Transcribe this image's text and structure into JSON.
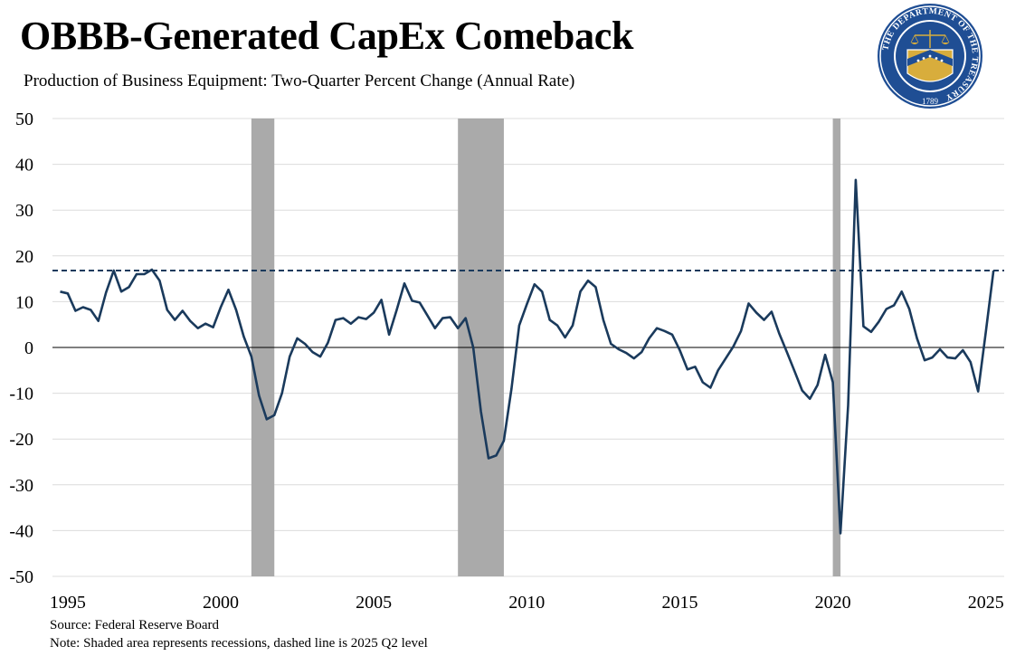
{
  "header": {
    "title": "OBBB-Generated CapEx Comeback",
    "subtitle": "Production of Business Equipment: Two-Quarter Percent Change (Annual Rate)"
  },
  "footer": {
    "source": "Source: Federal Reserve Board",
    "note": "Note: Shaded area represents recessions, dashed line is 2025 Q2 level"
  },
  "seal": {
    "text": "THE DEPARTMENT OF THE TREASURY",
    "year": "1789",
    "icon": "treasury-seal-icon",
    "colors": {
      "outer": "#1f4e94",
      "ring": "#ffffff",
      "gold": "#d8ad3c"
    }
  },
  "chart_data": {
    "type": "line",
    "x_ticks": [
      1995,
      2000,
      2005,
      2010,
      2015,
      2020,
      2025
    ],
    "y_ticks": [
      50,
      40,
      30,
      20,
      10,
      0,
      -10,
      -20,
      -30,
      -40,
      -50
    ],
    "ylim": [
      -50,
      50
    ],
    "xlim": [
      1994.5,
      2025.6
    ],
    "grid": "horizontal",
    "line_color": "#1a3a5c",
    "recession_color": "#aaaaaa",
    "reference_level": 16.8,
    "recessions": [
      [
        2001.0,
        2001.75
      ],
      [
        2007.75,
        2009.25
      ],
      [
        2020.0,
        2020.25
      ]
    ],
    "series": [
      {
        "x": [
          1994.75,
          1995.0,
          1995.25,
          1995.5,
          1995.75,
          1996.0,
          1996.25,
          1996.5,
          1996.75,
          1997.0,
          1997.25,
          1997.5,
          1997.75,
          1998.0,
          1998.25,
          1998.5,
          1998.75,
          1999.0,
          1999.25,
          1999.5,
          1999.75,
          2000.0,
          2000.25,
          2000.5,
          2000.75,
          2001.0,
          2001.25,
          2001.5,
          2001.75,
          2002.0,
          2002.25,
          2002.5,
          2002.75,
          2003.0,
          2003.25,
          2003.5,
          2003.75,
          2004.0,
          2004.25,
          2004.5,
          2004.75,
          2005.0,
          2005.25,
          2005.5,
          2005.75,
          2006.0,
          2006.25,
          2006.5,
          2006.75,
          2007.0,
          2007.25,
          2007.5,
          2007.75,
          2008.0,
          2008.25,
          2008.5,
          2008.75,
          2009.0,
          2009.25,
          2009.5,
          2009.75,
          2010.0,
          2010.25,
          2010.5,
          2010.75,
          2011.0,
          2011.25,
          2011.5,
          2011.75,
          2012.0,
          2012.25,
          2012.5,
          2012.75,
          2013.0,
          2013.25,
          2013.5,
          2013.75,
          2014.0,
          2014.25,
          2014.5,
          2014.75,
          2015.0,
          2015.25,
          2015.5,
          2015.75,
          2016.0,
          2016.25,
          2016.5,
          2016.75,
          2017.0,
          2017.25,
          2017.5,
          2017.75,
          2018.0,
          2018.25,
          2018.5,
          2018.75,
          2019.0,
          2019.25,
          2019.5,
          2019.75,
          2020.0,
          2020.25,
          2020.5,
          2020.75,
          2021.0,
          2021.25,
          2021.5,
          2021.75,
          2022.0,
          2022.25,
          2022.5,
          2022.75,
          2023.0,
          2023.25,
          2023.5,
          2023.75,
          2024.0,
          2024.25,
          2024.5,
          2024.75,
          2025.0,
          2025.25
        ],
        "y": [
          12.2,
          11.8,
          8.0,
          8.8,
          8.2,
          5.8,
          12.0,
          16.8,
          12.2,
          13.2,
          16.0,
          16.0,
          17.0,
          14.6,
          8.2,
          6.0,
          8.0,
          5.8,
          4.2,
          5.2,
          4.4,
          8.8,
          12.6,
          8.2,
          2.4,
          -2.0,
          -10.5,
          -15.7,
          -14.8,
          -10.0,
          -2.0,
          2.0,
          0.8,
          -1.0,
          -2.0,
          1.0,
          6.0,
          6.4,
          5.2,
          6.6,
          6.2,
          7.6,
          10.4,
          2.8,
          8.2,
          14.0,
          10.2,
          9.8,
          7.0,
          4.2,
          6.4,
          6.6,
          4.2,
          6.4,
          0.0,
          -14.0,
          -24.2,
          -23.6,
          -20.4,
          -9.0,
          4.8,
          9.4,
          13.8,
          12.2,
          6.0,
          4.8,
          2.2,
          4.8,
          12.2,
          14.6,
          13.2,
          6.0,
          0.8,
          -0.4,
          -1.2,
          -2.4,
          -1.0,
          2.0,
          4.2,
          3.6,
          2.8,
          -0.6,
          -4.8,
          -4.2,
          -7.6,
          -8.8,
          -5.0,
          -2.4,
          0.2,
          3.6,
          9.6,
          7.6,
          6.0,
          7.8,
          3.0,
          -1.0,
          -5.2,
          -9.4,
          -11.2,
          -8.2,
          -1.6,
          -7.6,
          -40.6,
          -12.6,
          36.6,
          4.6,
          3.4,
          5.6,
          8.4,
          9.2,
          12.2,
          8.4,
          2.0,
          -2.8,
          -2.2,
          -0.4,
          -2.2,
          -2.4,
          -0.6,
          -3.2,
          -9.6,
          3.4,
          16.8
        ]
      }
    ]
  }
}
